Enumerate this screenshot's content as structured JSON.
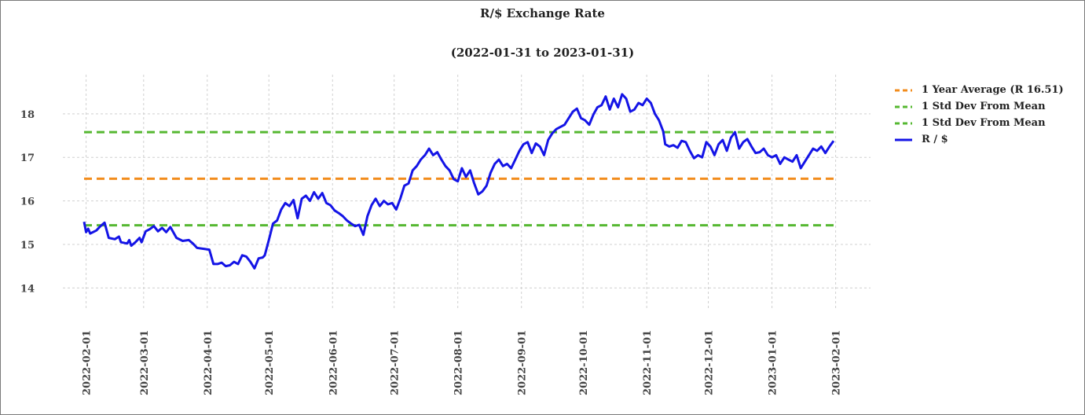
{
  "chart_data": {
    "type": "line",
    "title": "R/$  Exchange Rate",
    "subtitle": "(2022-01-31 to 2023-01-31)",
    "xlabel": "",
    "ylabel": "",
    "x_range": [
      "2022-01-31",
      "2023-01-31"
    ],
    "ylim": [
      13.5,
      18.9
    ],
    "y_ticks": [
      14,
      15,
      16,
      17,
      18
    ],
    "x_ticks": [
      "2022-02-01",
      "2022-03-01",
      "2022-04-01",
      "2022-05-01",
      "2022-06-01",
      "2022-07-01",
      "2022-08-01",
      "2022-09-01",
      "2022-10-01",
      "2022-11-01",
      "2022-12-01",
      "2023-01-01",
      "2023-02-01"
    ],
    "grid": true,
    "legend_position": "right",
    "series": [
      {
        "name": "1 Year Average (R 16.51)",
        "kind": "hline",
        "style": "dashed",
        "color": "#f28c1c",
        "y": 16.51
      },
      {
        "name": "1 Std Dev From Mean",
        "kind": "hline",
        "style": "dashed",
        "color": "#56b832",
        "y": 17.58
      },
      {
        "name": "1 Std Dev From Mean",
        "kind": "hline",
        "style": "dashed",
        "color": "#56b832",
        "y": 15.44
      },
      {
        "name": "R / $",
        "kind": "line",
        "style": "solid",
        "color": "#1414e6",
        "points": [
          [
            "2022-01-31",
            15.52
          ],
          [
            "2022-02-01",
            15.28
          ],
          [
            "2022-02-02",
            15.36
          ],
          [
            "2022-02-03",
            15.25
          ],
          [
            "2022-02-06",
            15.32
          ],
          [
            "2022-02-08",
            15.42
          ],
          [
            "2022-02-10",
            15.5
          ],
          [
            "2022-02-12",
            15.15
          ],
          [
            "2022-02-15",
            15.12
          ],
          [
            "2022-02-17",
            15.18
          ],
          [
            "2022-02-18",
            15.05
          ],
          [
            "2022-02-21",
            15.02
          ],
          [
            "2022-02-22",
            15.1
          ],
          [
            "2022-02-23",
            14.97
          ],
          [
            "2022-02-25",
            15.05
          ],
          [
            "2022-02-27",
            15.15
          ],
          [
            "2022-02-28",
            15.05
          ],
          [
            "2022-03-02",
            15.3
          ],
          [
            "2022-03-04",
            15.35
          ],
          [
            "2022-03-06",
            15.42
          ],
          [
            "2022-03-08",
            15.3
          ],
          [
            "2022-03-10",
            15.38
          ],
          [
            "2022-03-12",
            15.28
          ],
          [
            "2022-03-14",
            15.4
          ],
          [
            "2022-03-17",
            15.15
          ],
          [
            "2022-03-20",
            15.08
          ],
          [
            "2022-03-23",
            15.1
          ],
          [
            "2022-03-25",
            15.02
          ],
          [
            "2022-03-27",
            14.92
          ],
          [
            "2022-03-30",
            14.9
          ],
          [
            "2022-04-02",
            14.88
          ],
          [
            "2022-04-04",
            14.55
          ],
          [
            "2022-04-06",
            14.55
          ],
          [
            "2022-04-08",
            14.58
          ],
          [
            "2022-04-10",
            14.5
          ],
          [
            "2022-04-12",
            14.52
          ],
          [
            "2022-04-14",
            14.6
          ],
          [
            "2022-04-16",
            14.55
          ],
          [
            "2022-04-18",
            14.75
          ],
          [
            "2022-04-20",
            14.72
          ],
          [
            "2022-04-22",
            14.6
          ],
          [
            "2022-04-24",
            14.45
          ],
          [
            "2022-04-26",
            14.68
          ],
          [
            "2022-04-28",
            14.7
          ],
          [
            "2022-04-29",
            14.75
          ],
          [
            "2022-05-01",
            15.1
          ],
          [
            "2022-05-03",
            15.48
          ],
          [
            "2022-05-05",
            15.55
          ],
          [
            "2022-05-07",
            15.8
          ],
          [
            "2022-05-09",
            15.95
          ],
          [
            "2022-05-11",
            15.88
          ],
          [
            "2022-05-13",
            16.02
          ],
          [
            "2022-05-15",
            15.6
          ],
          [
            "2022-05-17",
            16.05
          ],
          [
            "2022-05-19",
            16.12
          ],
          [
            "2022-05-21",
            16.0
          ],
          [
            "2022-05-23",
            16.2
          ],
          [
            "2022-05-25",
            16.05
          ],
          [
            "2022-05-27",
            16.18
          ],
          [
            "2022-05-29",
            15.95
          ],
          [
            "2022-05-31",
            15.9
          ],
          [
            "2022-06-02",
            15.78
          ],
          [
            "2022-06-04",
            15.72
          ],
          [
            "2022-06-06",
            15.65
          ],
          [
            "2022-06-08",
            15.55
          ],
          [
            "2022-06-10",
            15.48
          ],
          [
            "2022-06-12",
            15.42
          ],
          [
            "2022-06-14",
            15.45
          ],
          [
            "2022-06-16",
            15.22
          ],
          [
            "2022-06-18",
            15.65
          ],
          [
            "2022-06-20",
            15.9
          ],
          [
            "2022-06-22",
            16.05
          ],
          [
            "2022-06-24",
            15.88
          ],
          [
            "2022-06-26",
            16.0
          ],
          [
            "2022-06-28",
            15.92
          ],
          [
            "2022-06-30",
            15.95
          ],
          [
            "2022-07-02",
            15.8
          ],
          [
            "2022-07-04",
            16.05
          ],
          [
            "2022-07-06",
            16.35
          ],
          [
            "2022-07-08",
            16.4
          ],
          [
            "2022-07-10",
            16.7
          ],
          [
            "2022-07-12",
            16.8
          ],
          [
            "2022-07-14",
            16.95
          ],
          [
            "2022-07-16",
            17.05
          ],
          [
            "2022-07-18",
            17.2
          ],
          [
            "2022-07-20",
            17.05
          ],
          [
            "2022-07-22",
            17.12
          ],
          [
            "2022-07-24",
            16.95
          ],
          [
            "2022-07-26",
            16.8
          ],
          [
            "2022-07-28",
            16.7
          ],
          [
            "2022-07-30",
            16.5
          ],
          [
            "2022-08-01",
            16.45
          ],
          [
            "2022-08-03",
            16.75
          ],
          [
            "2022-08-05",
            16.55
          ],
          [
            "2022-08-07",
            16.7
          ],
          [
            "2022-08-09",
            16.4
          ],
          [
            "2022-08-11",
            16.15
          ],
          [
            "2022-08-13",
            16.22
          ],
          [
            "2022-08-15",
            16.35
          ],
          [
            "2022-08-17",
            16.65
          ],
          [
            "2022-08-19",
            16.85
          ],
          [
            "2022-08-21",
            16.95
          ],
          [
            "2022-08-23",
            16.8
          ],
          [
            "2022-08-25",
            16.85
          ],
          [
            "2022-08-27",
            16.75
          ],
          [
            "2022-08-29",
            16.95
          ],
          [
            "2022-08-31",
            17.15
          ],
          [
            "2022-09-02",
            17.3
          ],
          [
            "2022-09-04",
            17.35
          ],
          [
            "2022-09-06",
            17.1
          ],
          [
            "2022-09-08",
            17.32
          ],
          [
            "2022-09-10",
            17.25
          ],
          [
            "2022-09-12",
            17.05
          ],
          [
            "2022-09-14",
            17.4
          ],
          [
            "2022-09-16",
            17.55
          ],
          [
            "2022-09-18",
            17.65
          ],
          [
            "2022-09-20",
            17.7
          ],
          [
            "2022-09-22",
            17.75
          ],
          [
            "2022-09-24",
            17.9
          ],
          [
            "2022-09-26",
            18.05
          ],
          [
            "2022-09-28",
            18.12
          ],
          [
            "2022-09-30",
            17.9
          ],
          [
            "2022-10-02",
            17.85
          ],
          [
            "2022-10-04",
            17.75
          ],
          [
            "2022-10-06",
            17.98
          ],
          [
            "2022-10-08",
            18.15
          ],
          [
            "2022-10-10",
            18.2
          ],
          [
            "2022-10-12",
            18.4
          ],
          [
            "2022-10-14",
            18.1
          ],
          [
            "2022-10-16",
            18.35
          ],
          [
            "2022-10-18",
            18.15
          ],
          [
            "2022-10-20",
            18.45
          ],
          [
            "2022-10-22",
            18.35
          ],
          [
            "2022-10-24",
            18.05
          ],
          [
            "2022-10-26",
            18.1
          ],
          [
            "2022-10-28",
            18.25
          ],
          [
            "2022-10-30",
            18.2
          ],
          [
            "2022-11-01",
            18.35
          ],
          [
            "2022-11-03",
            18.25
          ],
          [
            "2022-11-05",
            18.0
          ],
          [
            "2022-11-07",
            17.85
          ],
          [
            "2022-11-09",
            17.6
          ],
          [
            "2022-11-10",
            17.3
          ],
          [
            "2022-11-12",
            17.25
          ],
          [
            "2022-11-14",
            17.28
          ],
          [
            "2022-11-16",
            17.22
          ],
          [
            "2022-11-18",
            17.38
          ],
          [
            "2022-11-20",
            17.35
          ],
          [
            "2022-11-22",
            17.15
          ],
          [
            "2022-11-24",
            16.98
          ],
          [
            "2022-11-26",
            17.05
          ],
          [
            "2022-11-28",
            17.0
          ],
          [
            "2022-11-30",
            17.35
          ],
          [
            "2022-12-02",
            17.25
          ],
          [
            "2022-12-04",
            17.05
          ],
          [
            "2022-12-06",
            17.3
          ],
          [
            "2022-12-08",
            17.4
          ],
          [
            "2022-12-10",
            17.15
          ],
          [
            "2022-12-12",
            17.45
          ],
          [
            "2022-12-14",
            17.58
          ],
          [
            "2022-12-16",
            17.2
          ],
          [
            "2022-12-18",
            17.35
          ],
          [
            "2022-12-20",
            17.42
          ],
          [
            "2022-12-22",
            17.25
          ],
          [
            "2022-12-24",
            17.1
          ],
          [
            "2022-12-26",
            17.12
          ],
          [
            "2022-12-28",
            17.2
          ],
          [
            "2022-12-30",
            17.05
          ],
          [
            "2023-01-01",
            17.0
          ],
          [
            "2023-01-03",
            17.05
          ],
          [
            "2023-01-05",
            16.85
          ],
          [
            "2023-01-07",
            17.0
          ],
          [
            "2023-01-09",
            16.95
          ],
          [
            "2023-01-11",
            16.9
          ],
          [
            "2023-01-13",
            17.05
          ],
          [
            "2023-01-15",
            16.75
          ],
          [
            "2023-01-17",
            16.9
          ],
          [
            "2023-01-19",
            17.05
          ],
          [
            "2023-01-21",
            17.2
          ],
          [
            "2023-01-23",
            17.15
          ],
          [
            "2023-01-25",
            17.25
          ],
          [
            "2023-01-27",
            17.1
          ],
          [
            "2023-01-29",
            17.25
          ],
          [
            "2023-01-31",
            17.38
          ]
        ]
      }
    ]
  }
}
